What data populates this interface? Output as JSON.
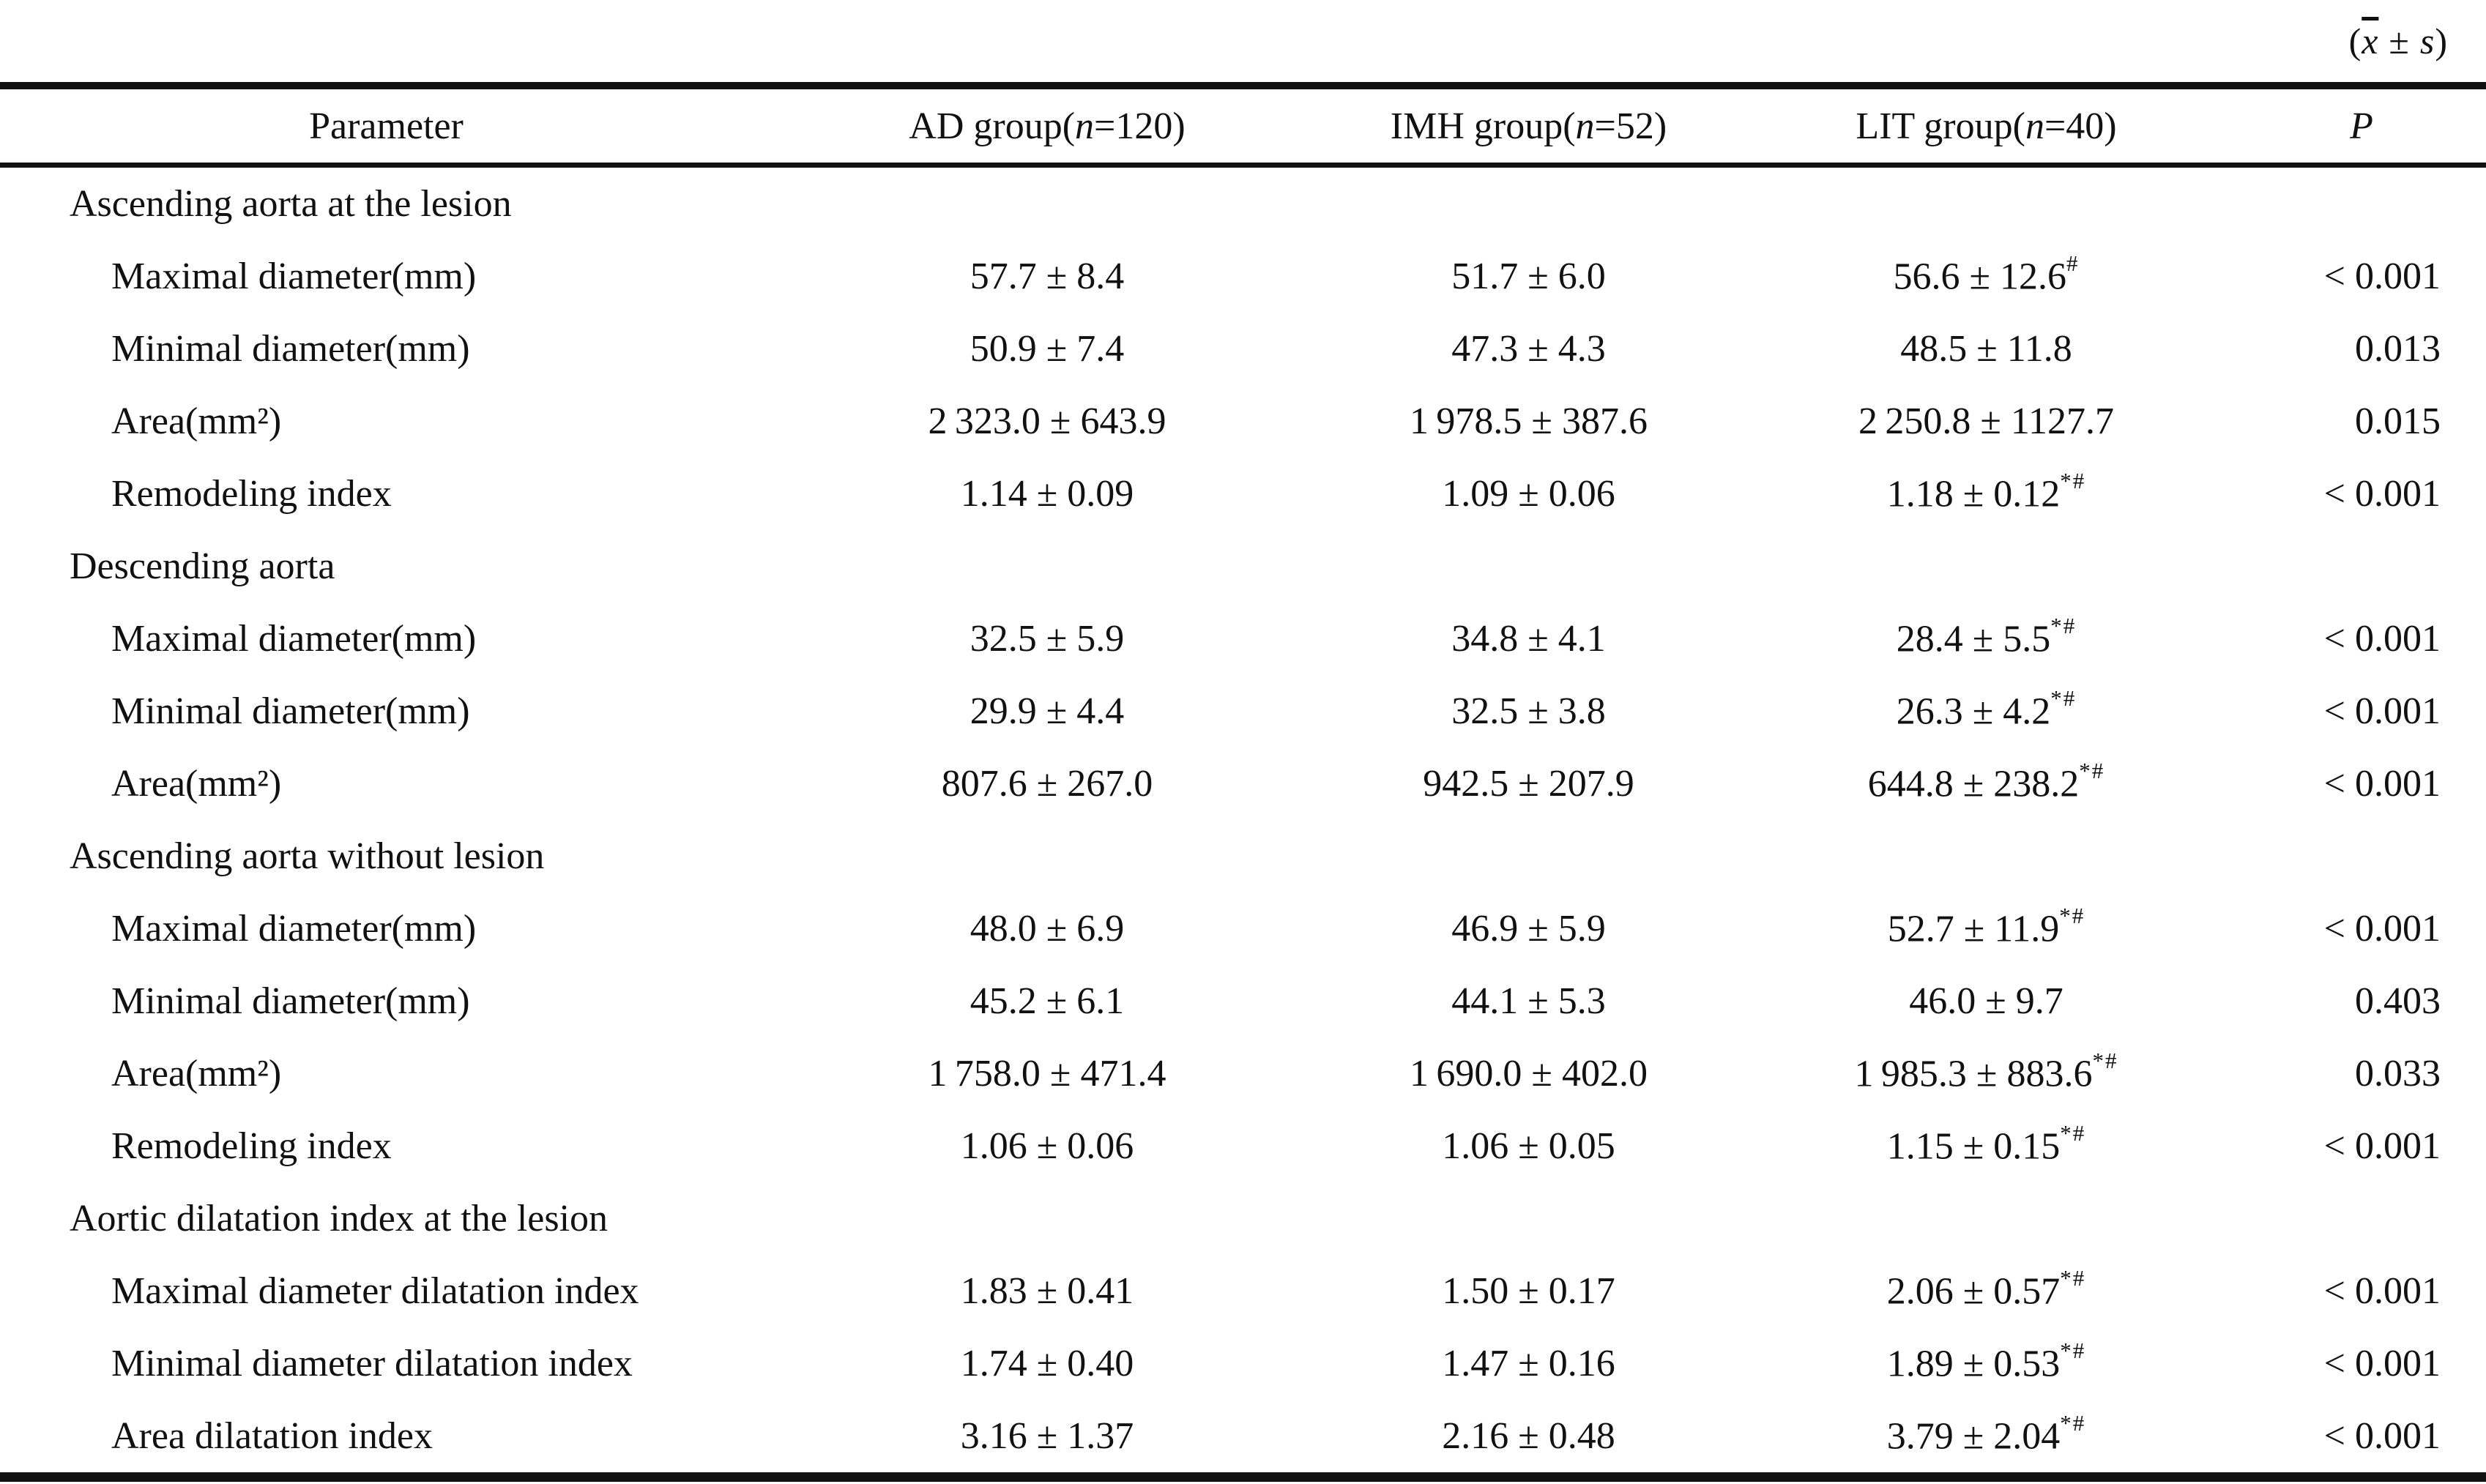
{
  "note": {
    "open": "(",
    "x": "x",
    "pm": "±",
    "s": "s",
    "close": ")"
  },
  "header": {
    "param": "Parameter",
    "ad": {
      "pre": "AD group(",
      "n": "n",
      "post": "=120)"
    },
    "imh": {
      "pre": "IMH group(",
      "n": "n",
      "post": "=52)"
    },
    "lit": {
      "pre": "LIT group(",
      "n": "n",
      "post": "=40)"
    },
    "p": "P"
  },
  "rows": [
    {
      "type": "section",
      "label": "Ascending aorta at the lesion"
    },
    {
      "type": "data",
      "label": "Maximal diameter(mm)",
      "ad": "57.7 ± 8.4",
      "imh": "51.7 ± 6.0",
      "lit": "56.6 ± 12.6",
      "lit_sup": "#",
      "p": "< 0.001"
    },
    {
      "type": "data",
      "label": "Minimal diameter(mm)",
      "ad": "50.9 ± 7.4",
      "imh": "47.3 ± 4.3",
      "lit": "48.5 ± 11.8",
      "lit_sup": "",
      "p": "0.013"
    },
    {
      "type": "data",
      "label": "Area(mm²)",
      "ad": "2 323.0 ± 643.9",
      "imh": "1 978.5 ± 387.6",
      "lit": "2 250.8 ± 1127.7",
      "lit_sup": "",
      "p": "0.015"
    },
    {
      "type": "data",
      "label": "Remodeling index",
      "ad": "1.14 ± 0.09",
      "imh": "1.09 ± 0.06",
      "lit": "1.18 ± 0.12",
      "lit_sup": "*#",
      "p": "< 0.001"
    },
    {
      "type": "section",
      "label": "Descending aorta"
    },
    {
      "type": "data",
      "label": "Maximal diameter(mm)",
      "ad": "32.5 ± 5.9",
      "imh": "34.8 ± 4.1",
      "lit": "28.4 ± 5.5",
      "lit_sup": "*#",
      "p": "< 0.001"
    },
    {
      "type": "data",
      "label": "Minimal diameter(mm)",
      "ad": "29.9 ± 4.4",
      "imh": "32.5 ± 3.8",
      "lit": "26.3 ± 4.2",
      "lit_sup": "*#",
      "p": "< 0.001"
    },
    {
      "type": "data",
      "label": "Area(mm²)",
      "ad": "807.6 ± 267.0",
      "imh": "942.5 ± 207.9",
      "lit": "644.8 ± 238.2",
      "lit_sup": "*#",
      "p": "< 0.001"
    },
    {
      "type": "section",
      "label": "Ascending aorta without lesion"
    },
    {
      "type": "data",
      "label": "Maximal diameter(mm)",
      "ad": "48.0 ± 6.9",
      "imh": "46.9 ± 5.9",
      "lit": "52.7 ± 11.9",
      "lit_sup": "*#",
      "p": "< 0.001"
    },
    {
      "type": "data",
      "label": "Minimal diameter(mm)",
      "ad": "45.2 ± 6.1",
      "imh": "44.1 ± 5.3",
      "lit": "46.0 ± 9.7",
      "lit_sup": "",
      "p": "0.403"
    },
    {
      "type": "data",
      "label": "Area(mm²)",
      "ad": "1 758.0 ± 471.4",
      "imh": "1 690.0 ± 402.0",
      "lit": "1 985.3 ± 883.6",
      "lit_sup": "*#",
      "p": "0.033"
    },
    {
      "type": "data",
      "label": "Remodeling index",
      "ad": "1.06 ± 0.06",
      "imh": "1.06 ± 0.05",
      "lit": "1.15 ± 0.15",
      "lit_sup": "*#",
      "p": "< 0.001"
    },
    {
      "type": "section",
      "label": "Aortic dilatation index at the lesion"
    },
    {
      "type": "data",
      "label": "Maximal diameter dilatation index",
      "ad": "1.83 ± 0.41",
      "imh": "1.50 ± 0.17",
      "lit": "2.06 ± 0.57",
      "lit_sup": "*#",
      "p": "< 0.001"
    },
    {
      "type": "data",
      "label": "Minimal diameter dilatation index",
      "ad": "1.74 ± 0.40",
      "imh": "1.47 ± 0.16",
      "lit": "1.89 ± 0.53",
      "lit_sup": "*#",
      "p": "< 0.001"
    },
    {
      "type": "data",
      "label": "Area dilatation index",
      "ad": "3.16 ± 1.37",
      "imh": "2.16 ± 0.48",
      "lit": "3.79 ± 2.04",
      "lit_sup": "*#",
      "p": "< 0.001"
    }
  ]
}
